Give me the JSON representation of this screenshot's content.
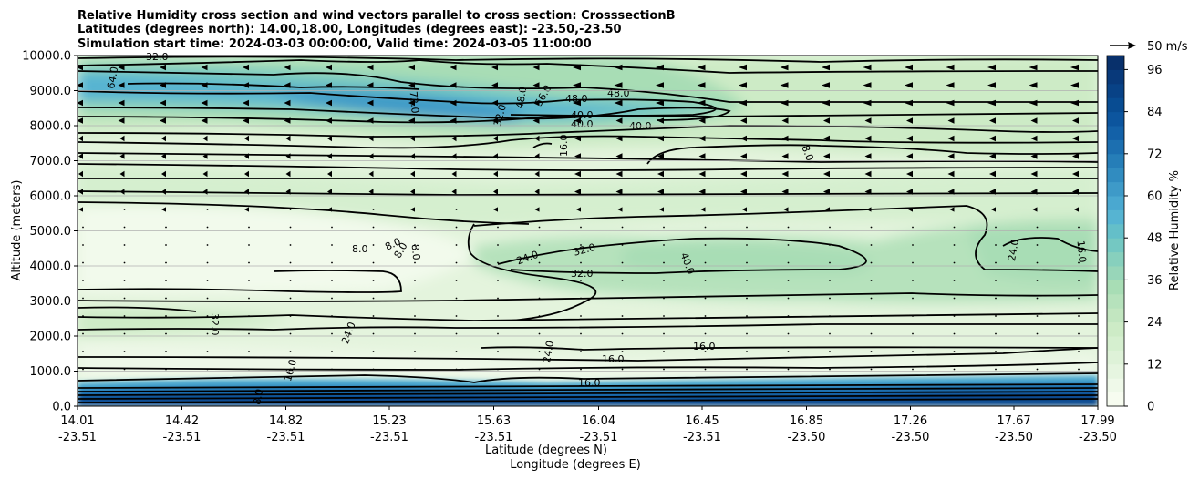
{
  "chart_data": {
    "type": "contour",
    "title_lines": [
      "Relative Humidity cross section and wind vectors parallel to cross section: CrosssectionB",
      "Latitudes (degrees north): 14.00,18.00, Longitudes (degrees east): -23.50,-23.50",
      "Simulation start time: 2024-03-03 00:00:00, Valid time: 2024-03-05 11:00:00"
    ],
    "ylabel": "Altitude (meters)",
    "xlabel_lat": "Latitude (degrees N)",
    "xlabel_lon": "Longitude (degrees E)",
    "ylim": [
      0,
      10000
    ],
    "y_ticks": [
      "0.0",
      "1000.0",
      "2000.0",
      "3000.0",
      "4000.0",
      "5000.0",
      "6000.0",
      "7000.0",
      "8000.0",
      "9000.0",
      "10000.0"
    ],
    "x_ticks": [
      {
        "lat": "14.01",
        "lon": "-23.51"
      },
      {
        "lat": "14.42",
        "lon": "-23.51"
      },
      {
        "lat": "14.82",
        "lon": "-23.51"
      },
      {
        "lat": "15.23",
        "lon": "-23.51"
      },
      {
        "lat": "15.63",
        "lon": "-23.51"
      },
      {
        "lat": "16.04",
        "lon": "-23.51"
      },
      {
        "lat": "16.45",
        "lon": "-23.51"
      },
      {
        "lat": "16.85",
        "lon": "-23.50"
      },
      {
        "lat": "17.26",
        "lon": "-23.50"
      },
      {
        "lat": "17.67",
        "lon": "-23.50"
      },
      {
        "lat": "17.99",
        "lon": "-23.50"
      }
    ],
    "colorbar": {
      "label": "Relative Humidity %",
      "ticks": [
        "0",
        "12",
        "24",
        "36",
        "48",
        "60",
        "72",
        "84",
        "96"
      ],
      "levels_count": 25,
      "min": 0,
      "max": 100,
      "colors": [
        "#f7fcf0",
        "#eff9e9",
        "#e6f5e0",
        "#def2d8",
        "#d5efcf",
        "#cdebc6",
        "#c2e6c0",
        "#b6e2bc",
        "#a8ddb5",
        "#98d6b9",
        "#87d0bd",
        "#74c8c2",
        "#64bfc9",
        "#56b4d2",
        "#4aa8d0",
        "#3e9ac8",
        "#318cc0",
        "#267eb8",
        "#1c6fb0",
        "#1361a8",
        "#0c559e",
        "#084c92",
        "#084286",
        "#08397a",
        "#08306b"
      ]
    },
    "contour_labels": [
      "8.0",
      "8.0",
      "8.0",
      "8.0",
      "8.0",
      "16.0",
      "16.0",
      "16.0",
      "16.0",
      "16.0",
      "16.0",
      "24.0",
      "24.0",
      "24.0",
      "24.0",
      "32.0",
      "32.0",
      "32.0",
      "32.0",
      "32.0",
      "40.0",
      "40.0",
      "40.0",
      "48.0",
      "48.0",
      "48.0",
      "56.0",
      "64.0",
      "72.0",
      "16.0",
      "8.0"
    ],
    "vector_key": "50 m/s",
    "wind": "westward (easterly) component dominant above 5000 m; near-calm (dots) below"
  }
}
